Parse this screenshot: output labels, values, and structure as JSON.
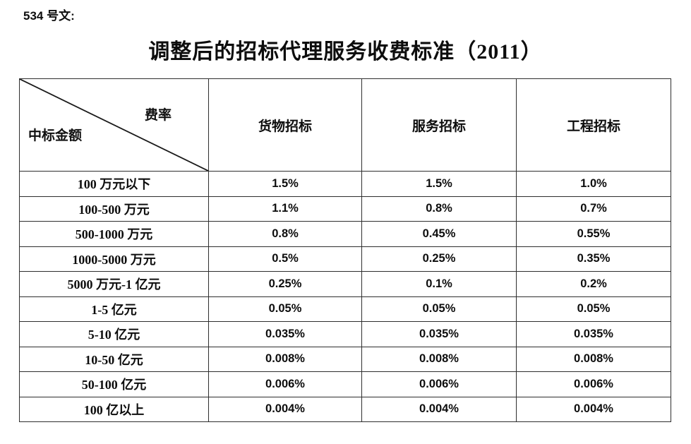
{
  "page": {
    "doc_label": "534 号文:",
    "title": "调整后的招标代理服务收费标准（2011）"
  },
  "table": {
    "corner": {
      "top_right": "费率",
      "bottom_left": "中标金额"
    },
    "columns": [
      "货物招标",
      "服务招标",
      "工程招标"
    ],
    "rows": [
      {
        "label": "100 万元以下",
        "values": [
          "1.5%",
          "1.5%",
          "1.0%"
        ]
      },
      {
        "label": "100-500 万元",
        "values": [
          "1.1%",
          "0.8%",
          "0.7%"
        ]
      },
      {
        "label": "500-1000 万元",
        "values": [
          "0.8%",
          "0.45%",
          "0.55%"
        ]
      },
      {
        "label": "1000-5000 万元",
        "values": [
          "0.5%",
          "0.25%",
          "0.35%"
        ]
      },
      {
        "label": "5000 万元-1 亿元",
        "values": [
          "0.25%",
          "0.1%",
          "0.2%"
        ]
      },
      {
        "label": "1-5 亿元",
        "values": [
          "0.05%",
          "0.05%",
          "0.05%"
        ]
      },
      {
        "label": "5-10 亿元",
        "values": [
          "0.035%",
          "0.035%",
          "0.035%"
        ]
      },
      {
        "label": "10-50 亿元",
        "values": [
          "0.008%",
          "0.008%",
          "0.008%"
        ]
      },
      {
        "label": "50-100 亿元",
        "values": [
          "0.006%",
          "0.006%",
          "0.006%"
        ]
      },
      {
        "label": "100 亿以上",
        "values": [
          "0.004%",
          "0.004%",
          "0.004%"
        ]
      }
    ],
    "colors": {
      "text": "#0d0d0d",
      "border": "#2e2e2e",
      "background": "#ffffff"
    }
  }
}
